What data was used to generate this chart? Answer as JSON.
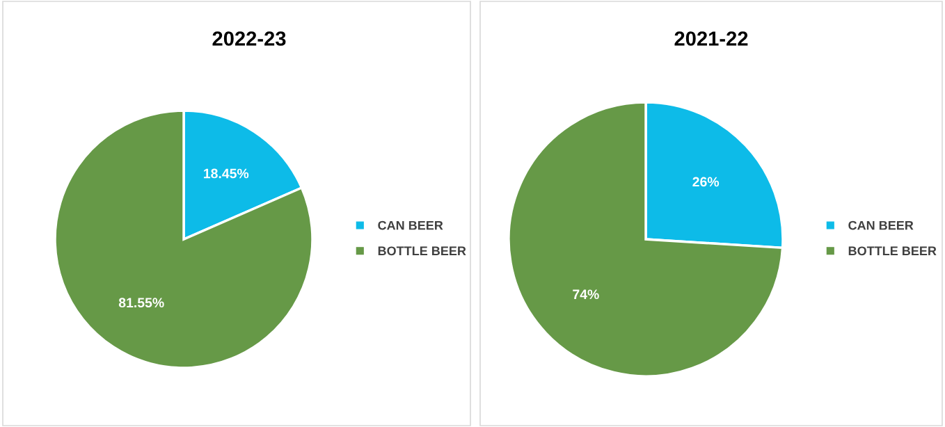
{
  "chart_data": [
    {
      "type": "pie",
      "title": "2022-23",
      "categories": [
        "CAN BEER",
        "BOTTLE BEER"
      ],
      "values": [
        18.45,
        81.55
      ],
      "colors": [
        "#0dbbe8",
        "#669947"
      ],
      "value_labels": [
        "18.45%",
        "81.55%"
      ],
      "legend": "right"
    },
    {
      "type": "pie",
      "title": "2021-22",
      "categories": [
        "CAN BEER",
        "BOTTLE BEER"
      ],
      "values": [
        26,
        74
      ],
      "colors": [
        "#0dbbe8",
        "#669947"
      ],
      "value_labels": [
        "26%",
        "74%"
      ],
      "legend": "right"
    }
  ]
}
